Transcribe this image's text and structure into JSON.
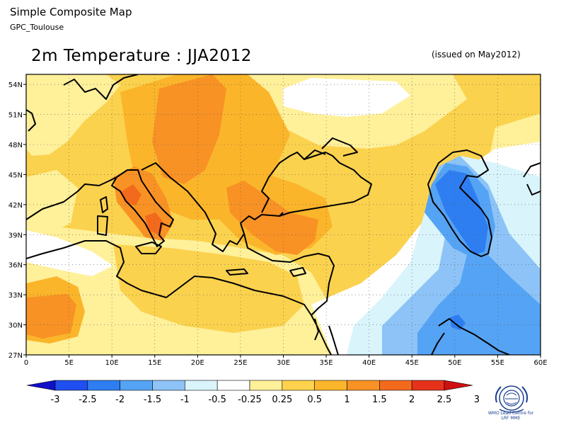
{
  "header": {
    "title": "Simple Composite Map",
    "subtitle": "GPC_Toulouse"
  },
  "map_title": "2m Temperature : JJA2012",
  "issued": "(issued on May2012)",
  "axes": {
    "lon_ticks": [
      "0",
      "5E",
      "10E",
      "15E",
      "20E",
      "25E",
      "30E",
      "35E",
      "40E",
      "45E",
      "50E",
      "55E",
      "60E"
    ],
    "lat_ticks": [
      "54N",
      "51N",
      "48N",
      "45N",
      "42N",
      "39N",
      "36N",
      "33N",
      "30N",
      "27N"
    ],
    "lon_range": [
      0,
      60
    ],
    "lat_range": [
      27,
      55
    ]
  },
  "colorbar": {
    "labels": [
      "-3",
      "-2.5",
      "-2",
      "-1.5",
      "-1",
      "-0.5",
      "-0.25",
      "0.25",
      "0.5",
      "1",
      "1.5",
      "2",
      "2.5",
      "3"
    ],
    "colors": [
      "#1010c8",
      "#1f4ff0",
      "#2e7ef2",
      "#55a3f4",
      "#8dc3f7",
      "#d9f4fb",
      "#ffffff",
      "#fff09a",
      "#ffd24d",
      "#fbb52a",
      "#f89225",
      "#f36a1c",
      "#e6321b",
      "#d01010"
    ]
  },
  "colors": {
    "land_outline": "#000000",
    "frame": "#000000"
  },
  "logo": {
    "icon": "wmo-emblem-icon",
    "text_line1": "WMO Lead Centre for",
    "text_line2": "LRF MME"
  }
}
